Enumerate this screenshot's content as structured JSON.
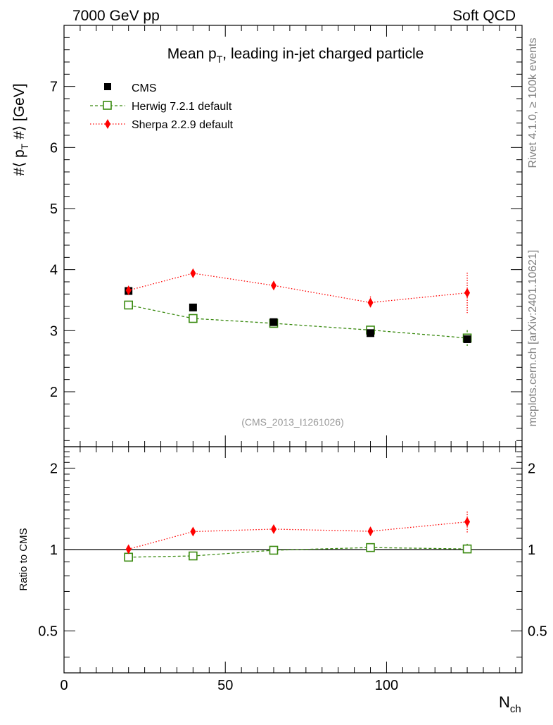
{
  "header": {
    "left": "7000 GeV pp",
    "right": "Soft QCD"
  },
  "side": {
    "top": "Rivet 4.1.0, ≥ 100k events",
    "bottom": "mcplots.cern.ch [arXiv:2401.10621]"
  },
  "colors": {
    "data": "#000000",
    "herwig": "#3a8a10",
    "sherpa": "#ff0000",
    "gray": "#808080"
  },
  "chart_data": [
    {
      "type": "scatter",
      "title": "Mean p_T, leading in-jet charged particle",
      "title_parts": {
        "pre": "Mean p",
        "sub": "T",
        "post": ", leading in-jet charged particle"
      },
      "ylabel": "#⟨ p_T #⟩ [GeV]",
      "ylabel_parts": {
        "pre": "#⟨ p",
        "sub": "T",
        "post": " #⟩ [GeV]"
      },
      "watermark": "(CMS_2013_I1261026)",
      "xlim": [
        0,
        142
      ],
      "ylim": [
        1.1,
        8.0
      ],
      "yticks": [
        2,
        3,
        4,
        5,
        6,
        7
      ],
      "legend_position": "top-left",
      "series": [
        {
          "name": "CMS",
          "style": "data",
          "x": [
            20,
            40,
            65,
            95,
            125
          ],
          "y": [
            3.65,
            3.38,
            3.14,
            2.96,
            2.86
          ],
          "err": [
            0.03,
            0.03,
            0.04,
            0.04,
            0.06
          ]
        },
        {
          "name": "Herwig 7.2.1 default",
          "style": "herwig",
          "x": [
            20,
            40,
            65,
            95,
            125
          ],
          "y": [
            3.42,
            3.2,
            3.12,
            3.01,
            2.88
          ],
          "err": [
            0.02,
            0.02,
            0.03,
            0.04,
            0.13
          ]
        },
        {
          "name": "Sherpa 2.2.9 default",
          "style": "sherpa",
          "x": [
            20,
            40,
            65,
            95,
            125
          ],
          "y": [
            3.66,
            3.94,
            3.74,
            3.46,
            3.62
          ],
          "err": [
            0.03,
            0.04,
            0.05,
            0.1,
            0.33
          ]
        }
      ]
    },
    {
      "type": "scatter",
      "ylabel": "Ratio to CMS",
      "xlabel": "N_ch",
      "xlabel_parts": {
        "pre": "N",
        "sub": "ch"
      },
      "xlim": [
        0,
        142
      ],
      "ylim": [
        0.35,
        2.4
      ],
      "yticks": [
        0.5,
        1,
        2
      ],
      "ytick_labels": [
        "0.5",
        "1",
        "2"
      ],
      "xticks": [
        0,
        50,
        100
      ],
      "xtick_labels": [
        "0",
        "50",
        "100"
      ],
      "series": [
        {
          "name": "Herwig 7.2.1 default",
          "style": "herwig",
          "x": [
            20,
            40,
            65,
            95,
            125
          ],
          "y": [
            0.937,
            0.947,
            0.994,
            1.017,
            1.005
          ],
          "err": [
            0.01,
            0.01,
            0.01,
            0.015,
            0.045
          ]
        },
        {
          "name": "Sherpa 2.2.9 default",
          "style": "sherpa",
          "x": [
            20,
            40,
            65,
            95,
            125
          ],
          "y": [
            1.003,
            1.165,
            1.19,
            1.168,
            1.266
          ],
          "err": [
            0.01,
            0.012,
            0.015,
            0.03,
            0.115
          ]
        }
      ]
    }
  ]
}
